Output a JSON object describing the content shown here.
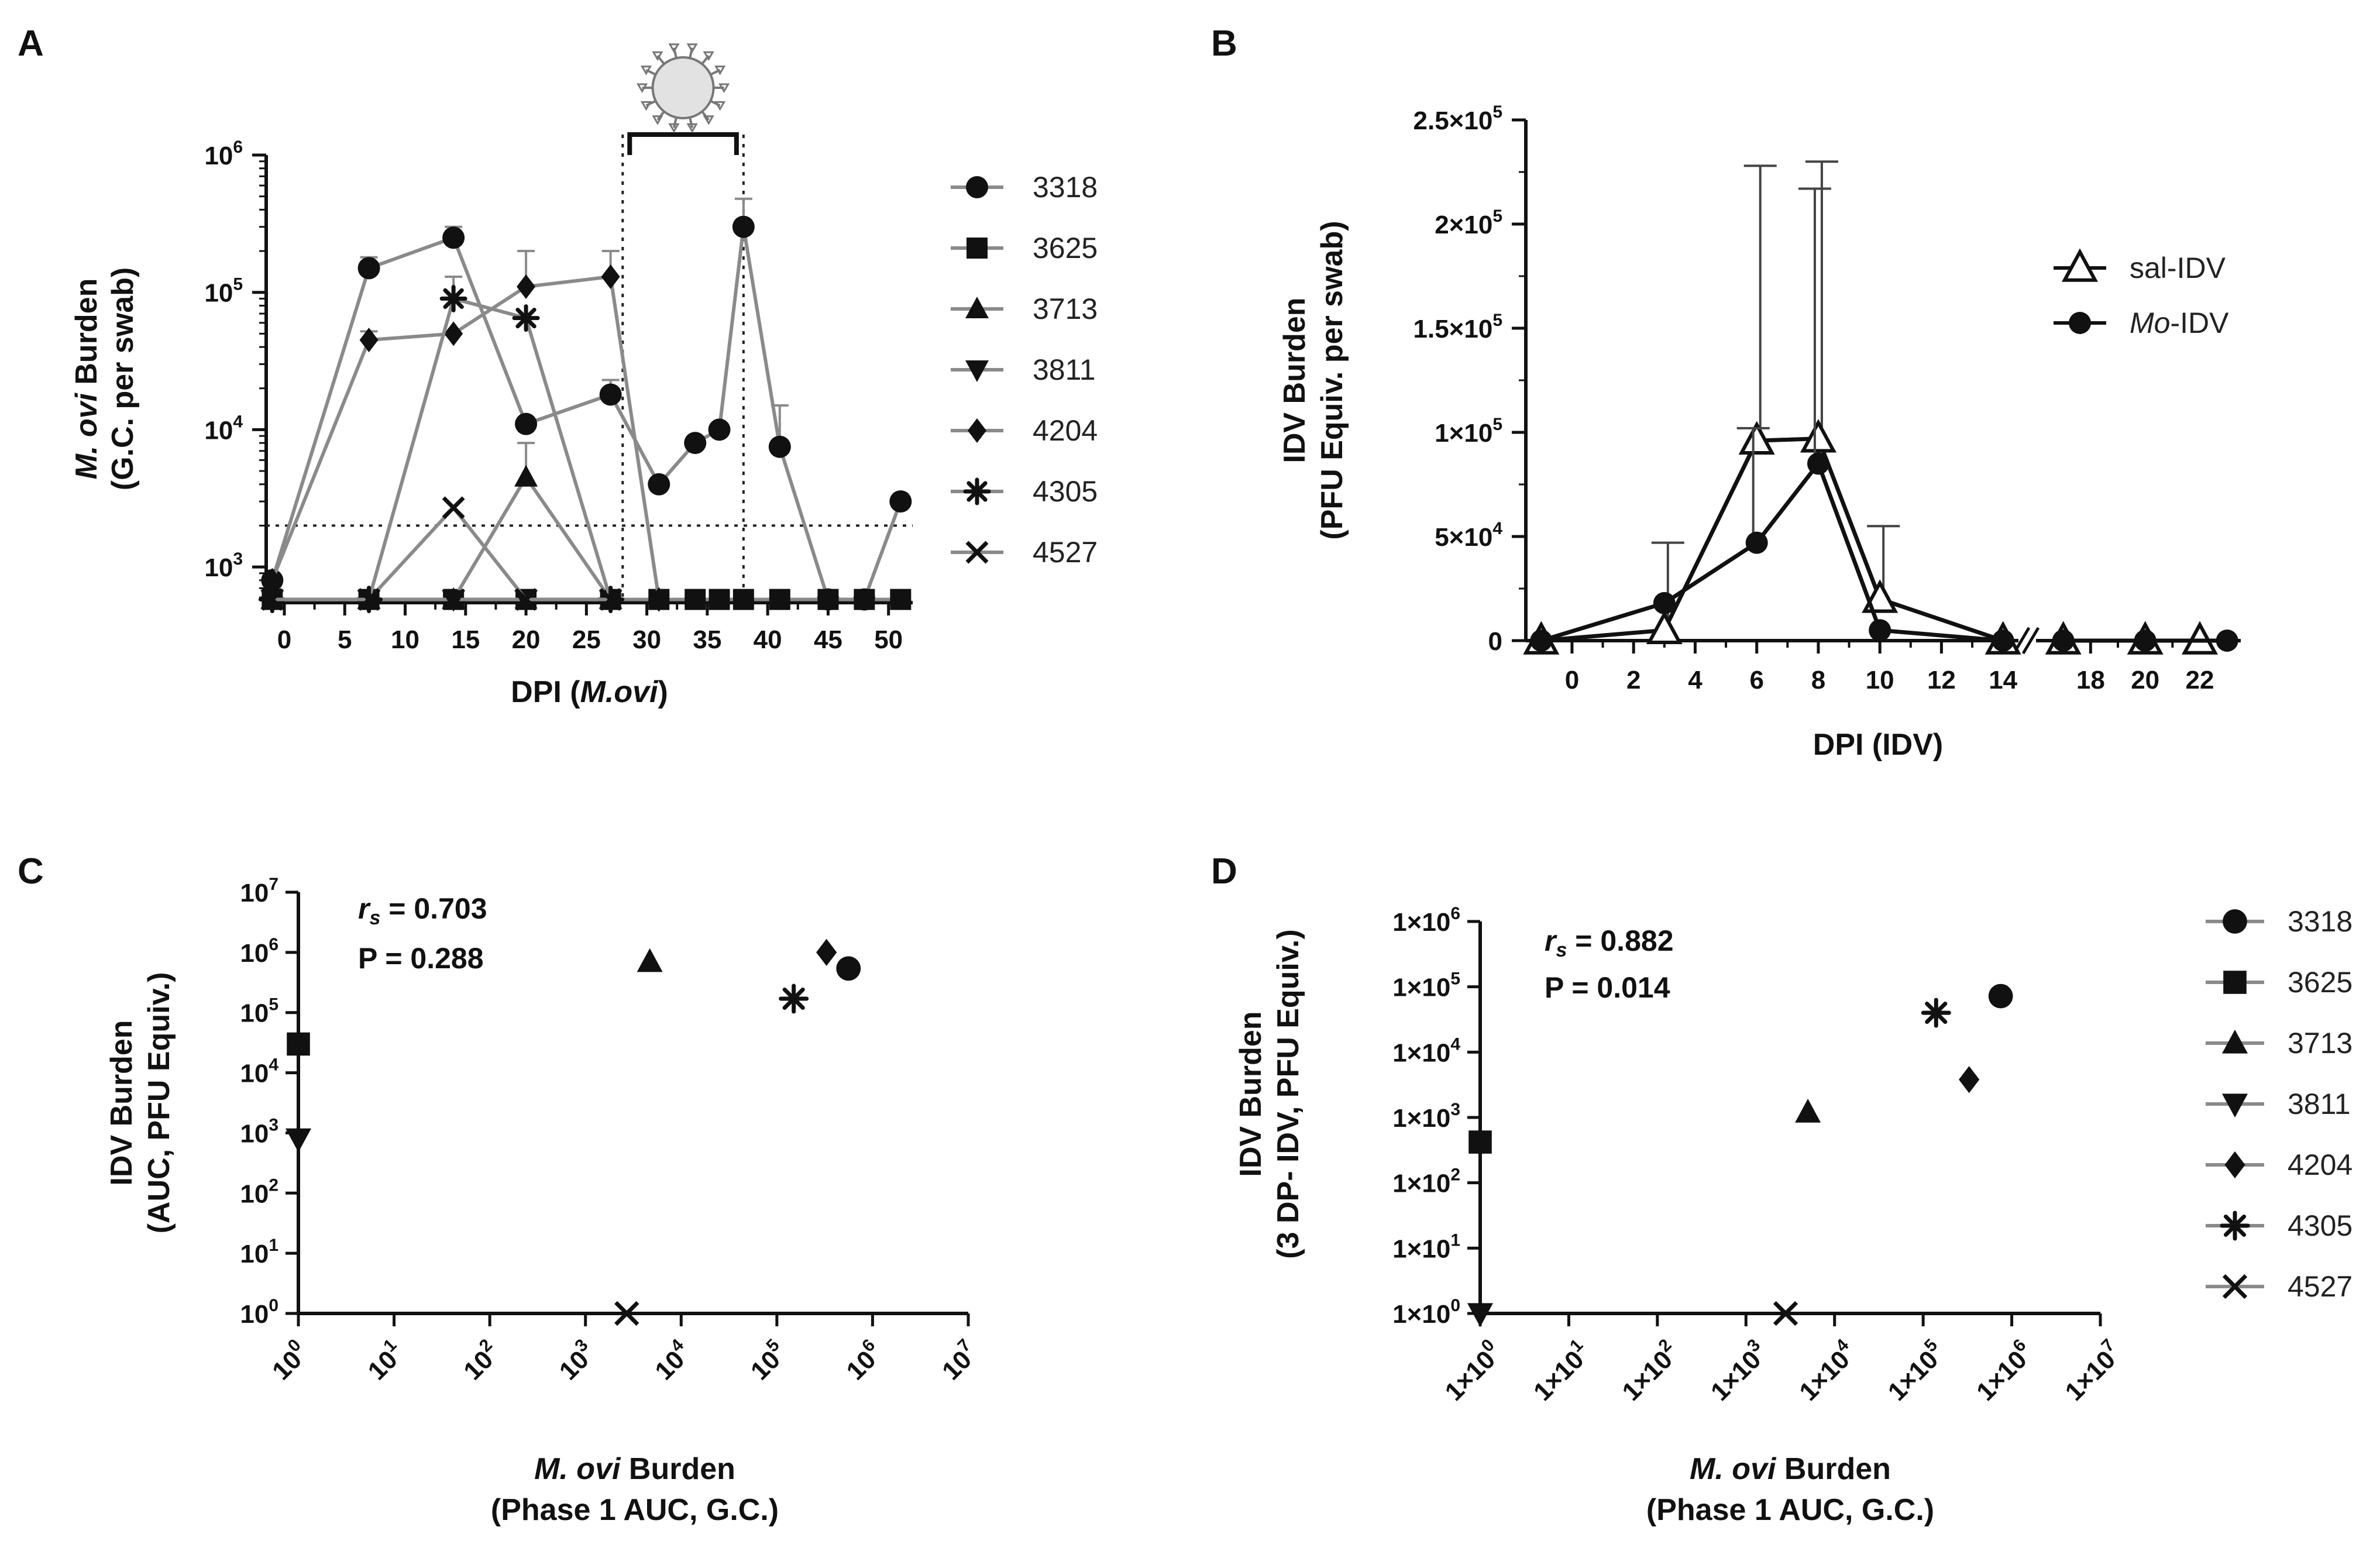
{
  "chart_data": [
    {
      "panel": "A",
      "type": "line",
      "xlabel_pre": "DPI (",
      "xlabel_italic": "M.ovi",
      "xlabel_post": ")",
      "ylabel_italic": "M. ovi",
      "ylabel_rest": " Burden",
      "ylabel_line2": "(G.C. per swab)",
      "ylim": [
        550,
        1000000
      ],
      "yscale": "log",
      "xlim": [
        -1.5,
        52
      ],
      "xticks": [
        0,
        5,
        10,
        15,
        20,
        25,
        30,
        35,
        40,
        45,
        50
      ],
      "yticks": [
        {
          "value": 1000,
          "base": "10",
          "exp": "3"
        },
        {
          "value": 10000,
          "base": "10",
          "exp": "4"
        },
        {
          "value": 100000,
          "base": "10",
          "exp": "5"
        },
        {
          "value": 1000000,
          "base": "10",
          "exp": "6"
        }
      ],
      "detection_limit": 2000,
      "idv_window": [
        28,
        38
      ],
      "legend_placement": "right",
      "series": [
        {
          "name": "3318",
          "marker": "circle",
          "x": [
            -1,
            7,
            14,
            20,
            27,
            31,
            34,
            36,
            38,
            41,
            45,
            48,
            51
          ],
          "y": [
            800,
            150000,
            250000,
            11000,
            18000,
            4000,
            8000,
            10000,
            300000,
            7500,
            580,
            580,
            3000
          ]
        },
        {
          "name": "3625",
          "marker": "square",
          "x": [
            -1,
            7,
            14,
            20,
            27,
            31,
            34,
            36,
            38,
            41,
            45,
            48,
            51
          ],
          "y": [
            580,
            580,
            580,
            580,
            580,
            580,
            580,
            580,
            580,
            580,
            580,
            580,
            580
          ]
        },
        {
          "name": "3713",
          "marker": "triangle-up",
          "x": [
            -1,
            7,
            14,
            20,
            27
          ],
          "y": [
            580,
            580,
            580,
            4500,
            580
          ]
        },
        {
          "name": "3811",
          "marker": "triangle-down",
          "x": [
            -1,
            7,
            14,
            20,
            27
          ],
          "y": [
            580,
            580,
            580,
            580,
            580
          ]
        },
        {
          "name": "4204",
          "marker": "diamond",
          "x": [
            -1,
            7,
            14,
            20,
            27,
            31
          ],
          "y": [
            800,
            45000,
            50000,
            110000,
            130000,
            580
          ]
        },
        {
          "name": "4305",
          "marker": "asterisk",
          "x": [
            -1,
            7,
            14,
            20,
            27
          ],
          "y": [
            580,
            580,
            90000,
            65000,
            580
          ]
        },
        {
          "name": "4527",
          "marker": "x",
          "x": [
            -1,
            7,
            14,
            20,
            27
          ],
          "y": [
            580,
            580,
            2700,
            580,
            580
          ]
        }
      ]
    },
    {
      "panel": "B",
      "type": "line",
      "xlabel": "DPI (IDV)",
      "ylabel": "IDV Burden",
      "ylabel_line2": "(PFU Equiv. per swab)",
      "ylim": [
        0,
        250000
      ],
      "xticks": [
        0,
        2,
        4,
        6,
        8,
        10,
        12,
        14,
        18,
        20,
        22
      ],
      "yticks": [
        {
          "value": 0,
          "text": "0"
        },
        {
          "value": 50000,
          "base": "5×10",
          "exp": "4"
        },
        {
          "value": 100000,
          "base": "1×10",
          "exp": "5"
        },
        {
          "value": 150000,
          "base": "1.5×10",
          "exp": "5"
        },
        {
          "value": 200000,
          "base": "2×10",
          "exp": "5"
        },
        {
          "value": 250000,
          "base": "2.5×10",
          "exp": "5"
        }
      ],
      "axis_break": [
        14.5,
        16
      ],
      "legend_placement": "top-right",
      "series": [
        {
          "name": "sal-IDV",
          "marker": "triangle-open",
          "x": [
            -1,
            3,
            6,
            8,
            10,
            14,
            17,
            20,
            22
          ],
          "y": [
            0,
            5000,
            96000,
            97000,
            20000,
            0,
            0,
            0,
            0
          ],
          "err_upper": [
            0,
            47000,
            228000,
            230000,
            55000,
            0,
            0,
            0,
            0
          ]
        },
        {
          "name": "Mo-IDV",
          "name_italic": "Mo",
          "name_rest": "-IDV",
          "marker": "circle",
          "x": [
            -1,
            3,
            6,
            8,
            10,
            14,
            17,
            20,
            23
          ],
          "y": [
            0,
            18000,
            47000,
            85000,
            5000,
            0,
            0,
            0,
            0
          ],
          "err_upper": [
            0,
            0,
            102000,
            217000,
            0,
            0,
            0,
            0,
            0
          ]
        }
      ]
    },
    {
      "panel": "C",
      "type": "scatter",
      "xscale": "log",
      "yscale": "log",
      "xlabel_italic": "M. ovi",
      "xlabel_rest": " Burden",
      "xlabel_line2": "(Phase 1 AUC, G.C.)",
      "ylabel": "IDV Burden",
      "ylabel_line2": "(AUC, PFU Equiv.)",
      "xlim": [
        1,
        10000000
      ],
      "ylim": [
        1,
        10000000
      ],
      "tick_style": "power",
      "ticks": [
        {
          "value": 1,
          "base": "10",
          "exp": "0"
        },
        {
          "value": 10,
          "base": "10",
          "exp": "1"
        },
        {
          "value": 100,
          "base": "10",
          "exp": "2"
        },
        {
          "value": 1000,
          "base": "10",
          "exp": "3"
        },
        {
          "value": 10000,
          "base": "10",
          "exp": "4"
        },
        {
          "value": 100000,
          "base": "10",
          "exp": "5"
        },
        {
          "value": 1000000,
          "base": "10",
          "exp": "6"
        },
        {
          "value": 10000000,
          "base": "10",
          "exp": "7"
        }
      ],
      "stat_r_label": "r",
      "stat_r_sub": "s",
      "stat_r_value": " = 0.703",
      "stat_p": "P = 0.288",
      "points": [
        {
          "name": "3318",
          "marker": "circle",
          "x": 560000,
          "y": 540000
        },
        {
          "name": "3625",
          "marker": "square",
          "x": 1,
          "y": 30000
        },
        {
          "name": "3713",
          "marker": "triangle-up",
          "x": 4700,
          "y": 700000
        },
        {
          "name": "3811",
          "marker": "triangle-down",
          "x": 1,
          "y": 800
        },
        {
          "name": "4204",
          "marker": "diamond",
          "x": 330000,
          "y": 1000000
        },
        {
          "name": "4305",
          "marker": "asterisk",
          "x": 150000,
          "y": 170000
        },
        {
          "name": "4527",
          "marker": "x",
          "x": 2700,
          "y": 1
        }
      ]
    },
    {
      "panel": "D",
      "type": "scatter",
      "xscale": "log",
      "yscale": "log",
      "xlabel_italic": "M. ovi",
      "xlabel_rest": " Burden",
      "xlabel_line2": "(Phase 1 AUC, G.C.)",
      "ylabel": "IDV Burden",
      "ylabel_line2": "(3 DP- IDV, PFU Equiv.)",
      "xlim": [
        1,
        10000000
      ],
      "ylim": [
        1,
        1000000
      ],
      "tick_style": "scientific",
      "xticks": [
        {
          "value": 1,
          "base": "1×10",
          "exp": "0"
        },
        {
          "value": 10,
          "base": "1×10",
          "exp": "1"
        },
        {
          "value": 100,
          "base": "1×10",
          "exp": "2"
        },
        {
          "value": 1000,
          "base": "1×10",
          "exp": "3"
        },
        {
          "value": 10000,
          "base": "1×10",
          "exp": "4"
        },
        {
          "value": 100000,
          "base": "1×10",
          "exp": "5"
        },
        {
          "value": 1000000,
          "base": "1×10",
          "exp": "6"
        },
        {
          "value": 10000000,
          "base": "1×10",
          "exp": "7"
        }
      ],
      "yticks": [
        {
          "value": 1,
          "base": "1×10",
          "exp": "0"
        },
        {
          "value": 10,
          "base": "1×10",
          "exp": "1"
        },
        {
          "value": 100,
          "base": "1×10",
          "exp": "2"
        },
        {
          "value": 1000,
          "base": "1×10",
          "exp": "3"
        },
        {
          "value": 10000,
          "base": "1×10",
          "exp": "4"
        },
        {
          "value": 100000,
          "base": "1×10",
          "exp": "5"
        },
        {
          "value": 1000000,
          "base": "1×10",
          "exp": "6"
        }
      ],
      "stat_r_label": "r",
      "stat_r_sub": "s",
      "stat_r_value": " = 0.882",
      "stat_p": "P = 0.014",
      "legend_placement": "right",
      "points": [
        {
          "name": "3318",
          "marker": "circle",
          "x": 750000,
          "y": 72000
        },
        {
          "name": "3625",
          "marker": "square",
          "x": 1,
          "y": 420
        },
        {
          "name": "3713",
          "marker": "triangle-up",
          "x": 5000,
          "y": 1200
        },
        {
          "name": "3811",
          "marker": "triangle-down",
          "x": 1,
          "y": 1
        },
        {
          "name": "4204",
          "marker": "diamond",
          "x": 330000,
          "y": 3800
        },
        {
          "name": "4305",
          "marker": "asterisk",
          "x": 140000,
          "y": 40000
        },
        {
          "name": "4527",
          "marker": "x",
          "x": 2800,
          "y": 1
        }
      ]
    }
  ],
  "panel_labels": [
    "A",
    "B",
    "C",
    "D"
  ],
  "colors": {
    "series_line": "#8a8a8a",
    "marker": "#111111",
    "axis": "#111111",
    "text": "#111111",
    "virus_fill": "#e2e2e2"
  },
  "icons": {
    "virus": "virus-icon"
  }
}
